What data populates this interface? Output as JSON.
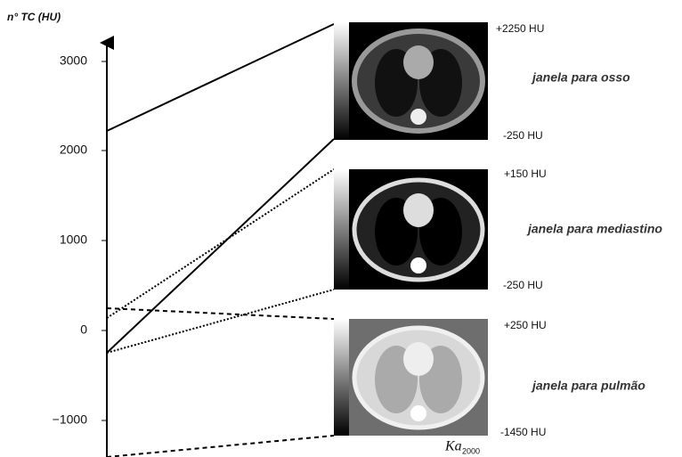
{
  "axis": {
    "label": "n° TC (HU)",
    "ticks": [
      "3000",
      "2000",
      "1000",
      "0",
      "−1000"
    ]
  },
  "windows": [
    {
      "name": "janela para osso",
      "top": "+2250 HU",
      "bottom": "-250 HU"
    },
    {
      "name": "janela para mediastino",
      "top": "+150 HU",
      "bottom": "-250 HU"
    },
    {
      "name": "janela para pulmão",
      "top": "+250 HU",
      "bottom": "-1450 HU"
    }
  ],
  "signature": {
    "initials": "Ka",
    "year": "2000"
  }
}
